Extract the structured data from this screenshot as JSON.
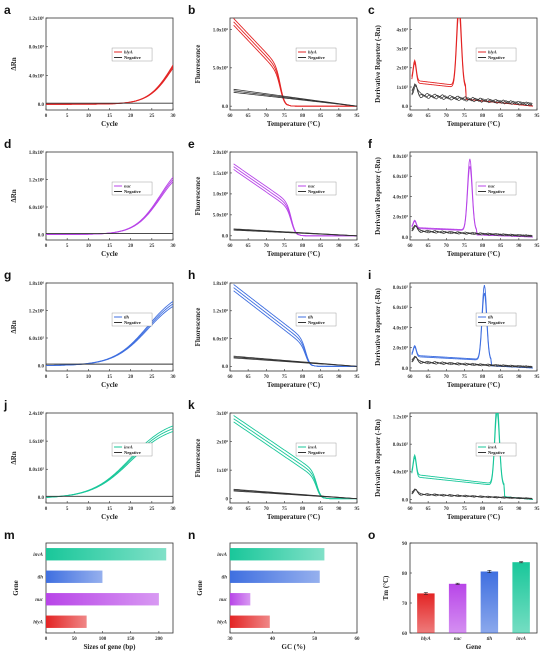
{
  "figure": {
    "colors": {
      "hlyA": "#e32424",
      "nuc": "#b845e8",
      "tlh": "#3f6fe0",
      "invA": "#19c79a",
      "negative": "#333333"
    },
    "panels": [
      {
        "id": "a",
        "label": "a",
        "kind": "amp",
        "color": "#e32424",
        "gene": "hlyA",
        "xlabel": "Cycle",
        "ylabel": "ΔRn",
        "xlim": [
          0,
          30
        ],
        "ylim": [
          -0.8,
          12
        ],
        "ymax": 12,
        "expo": "5",
        "yticks": [
          0,
          4,
          8,
          12
        ],
        "yticklabels": [
          "0.0",
          "4.0x10⁵",
          "8.0x10⁵",
          "1.2x10⁶"
        ],
        "xticks": [
          0,
          5,
          10,
          15,
          20,
          25,
          30
        ],
        "threshold_cycle": 17,
        "plateau": 10.5,
        "k": 0.35,
        "half": 30,
        "neg": 0.15,
        "legend": [
          "hlyA",
          "Negative"
        ]
      },
      {
        "id": "b",
        "label": "b",
        "kind": "melt",
        "color": "#e32424",
        "gene": "hlyA",
        "xlabel": "Temperature (°C)",
        "ylabel": "Fluorescence",
        "xlim": [
          60,
          95
        ],
        "ylim": [
          -0.05,
          1.15
        ],
        "yticks": [
          0,
          0.5,
          1.0
        ],
        "yticklabels": [
          "0.0",
          "5.0x10⁵",
          "1.0x10⁶"
        ],
        "xticks": [
          60,
          65,
          70,
          75,
          80,
          85,
          90,
          95
        ],
        "tm": 74,
        "start": 1.1,
        "shoulder": 0.5,
        "negstart": 0.2,
        "legend": [
          "hlyA",
          "Negative"
        ]
      },
      {
        "id": "c",
        "label": "c",
        "kind": "deriv",
        "color": "#e32424",
        "gene": "hlyA",
        "xlabel": "Temperature (°C)",
        "ylabel": "Derivative Reporter (-Rn)",
        "xlim": [
          60,
          95
        ],
        "ylim": [
          -0.2,
          4.6
        ],
        "yticks": [
          0,
          1,
          2,
          3,
          4
        ],
        "yticklabels": [
          "0.0",
          "1x10⁵",
          "2x10⁵",
          "3x10⁵",
          "4x10⁵"
        ],
        "xticks": [
          60,
          65,
          70,
          75,
          80,
          85,
          90,
          95
        ],
        "tm": 73.5,
        "peak": 4.2,
        "base": 1.3,
        "negbase": 0.6,
        "legend": [
          "hlyA",
          "Negative"
        ]
      },
      {
        "id": "d",
        "label": "d",
        "kind": "amp",
        "color": "#b845e8",
        "gene": "nuc",
        "xlabel": "Cycle",
        "ylabel": "ΔRn",
        "xlim": [
          0,
          30
        ],
        "ylim": [
          -1.2,
          18
        ],
        "yticks": [
          0,
          6,
          12,
          18
        ],
        "yticklabels": [
          "0.0",
          "6.0x10⁵",
          "1.2x10⁶",
          "1.8x10⁶"
        ],
        "xticks": [
          0,
          5,
          10,
          15,
          20,
          25,
          30
        ],
        "threshold_cycle": 17,
        "plateau": 16.5,
        "k": 0.33,
        "half": 27,
        "neg": 0.2,
        "legend": [
          "nuc",
          "Negative"
        ]
      },
      {
        "id": "e",
        "label": "e",
        "kind": "melt",
        "color": "#b845e8",
        "gene": "nuc",
        "xlabel": "Temperature (°C)",
        "ylabel": "Fluorescence",
        "xlim": [
          60,
          95
        ],
        "ylim": [
          -0.1,
          2.0
        ],
        "yticks": [
          0,
          0.5,
          1.0,
          1.5,
          2.0
        ],
        "yticklabels": [
          "0.0",
          "5.0x10⁵",
          "1.0x10⁶",
          "1.5x10⁶",
          "2.0x10⁶"
        ],
        "xticks": [
          60,
          65,
          70,
          75,
          80,
          85,
          90,
          95
        ],
        "tm": 77,
        "start": 1.65,
        "shoulder": 0.75,
        "negstart": 0.15,
        "legend": [
          "nuc",
          "Negative"
        ]
      },
      {
        "id": "f",
        "label": "f",
        "kind": "deriv",
        "color": "#b845e8",
        "gene": "nuc",
        "xlabel": "Temperature (°C)",
        "ylabel": "Derivative Reporter (-Rn)",
        "xlim": [
          60,
          95
        ],
        "ylim": [
          -0.3,
          8.4
        ],
        "yticks": [
          0,
          2,
          4,
          6,
          8
        ],
        "yticklabels": [
          "0.0",
          "2.0x10⁵",
          "4.0x10⁵",
          "6.0x10⁵",
          "8.0x10⁵"
        ],
        "xticks": [
          60,
          65,
          70,
          75,
          80,
          85,
          90,
          95
        ],
        "tm": 76.5,
        "peak": 6.7,
        "base": 0.9,
        "negbase": 0.6,
        "legend": [
          "nuc",
          "Negative"
        ]
      },
      {
        "id": "g",
        "label": "g",
        "kind": "amp",
        "color": "#3f6fe0",
        "gene": "tlh",
        "xlabel": "Cycle",
        "ylabel": "ΔRn",
        "xlim": [
          0,
          30
        ],
        "ylim": [
          -1.2,
          18
        ],
        "yticks": [
          0,
          6,
          12,
          18
        ],
        "yticklabels": [
          "0.0",
          "6.0x10⁵",
          "1.2x10⁶",
          "1.8x10⁶"
        ],
        "xticks": [
          0,
          5,
          10,
          15,
          20,
          25,
          30
        ],
        "threshold_cycle": 14,
        "plateau": 16.5,
        "k": 0.25,
        "half": 24,
        "neg": 0.3,
        "legend": [
          "tlh",
          "Negative"
        ]
      },
      {
        "id": "h",
        "label": "h",
        "kind": "melt",
        "color": "#3f6fe0",
        "gene": "tlh",
        "xlabel": "Temperature (°C)",
        "ylabel": "Fluorescence",
        "xlim": [
          60,
          95
        ],
        "ylim": [
          -0.1,
          1.8
        ],
        "yticks": [
          0,
          0.6,
          1.2,
          1.8
        ],
        "yticklabels": [
          "0.0",
          "6.0x10⁵",
          "1.2x10⁶",
          "1.8x10⁶"
        ],
        "xticks": [
          60,
          65,
          70,
          75,
          80,
          85,
          90,
          95
        ],
        "tm": 81,
        "start": 1.7,
        "shoulder": 0.55,
        "negstart": 0.2,
        "legend": [
          "tlh",
          "Negative"
        ]
      },
      {
        "id": "i",
        "label": "i",
        "kind": "deriv",
        "color": "#3f6fe0",
        "gene": "tlh",
        "xlabel": "Temperature (°C)",
        "ylabel": "Derivative Reporter (-Rn)",
        "xlim": [
          60,
          95
        ],
        "ylim": [
          -0.3,
          8.4
        ],
        "yticks": [
          0,
          2,
          4,
          6,
          8
        ],
        "yticklabels": [
          "0.0",
          "2.0x10⁵",
          "4.0x10⁵",
          "6.0x10⁵",
          "8.0x10⁵"
        ],
        "xticks": [
          60,
          65,
          70,
          75,
          80,
          85,
          90,
          95
        ],
        "tm": 80.5,
        "peak": 7.0,
        "base": 1.2,
        "negbase": 0.6,
        "legend": [
          "tlh",
          "Negative"
        ]
      },
      {
        "id": "j",
        "label": "j",
        "kind": "amp",
        "color": "#19c79a",
        "gene": "invA",
        "xlabel": "Cycle",
        "ylabel": "ΔRn",
        "xlim": [
          0,
          30
        ],
        "ylim": [
          -1.6,
          24
        ],
        "yticks": [
          0,
          8,
          16,
          24
        ],
        "yticklabels": [
          "0.0",
          "8.0x10⁵",
          "1.6x10⁶",
          "2.4x10⁶"
        ],
        "xticks": [
          0,
          5,
          10,
          15,
          20,
          25,
          30
        ],
        "threshold_cycle": 11,
        "plateau": 22,
        "k": 0.22,
        "half": 20,
        "neg": 0.3,
        "legend": [
          "invA",
          "Negative"
        ]
      },
      {
        "id": "k",
        "label": "k",
        "kind": "melt",
        "color": "#19c79a",
        "gene": "invA",
        "xlabel": "Temperature (°C)",
        "ylabel": "Fluorescence",
        "xlim": [
          60,
          95
        ],
        "ylim": [
          -0.15,
          3.0
        ],
        "yticks": [
          0,
          1,
          2,
          3
        ],
        "yticklabels": [
          "0",
          "1x10⁶",
          "2x10⁶",
          "3x10⁶"
        ],
        "xticks": [
          60,
          65,
          70,
          75,
          80,
          85,
          90,
          95
        ],
        "tm": 84,
        "start": 2.8,
        "shoulder": 0.9,
        "negstart": 0.3,
        "legend": [
          "invA",
          "Negative"
        ]
      },
      {
        "id": "l",
        "label": "l",
        "kind": "deriv",
        "color": "#19c79a",
        "gene": "invA",
        "xlabel": "Temperature (°C)",
        "ylabel": "Derivative Reporter (-Rn)",
        "xlim": [
          60,
          95
        ],
        "ylim": [
          -0.5,
          12.5
        ],
        "yticks": [
          0,
          4,
          8,
          12
        ],
        "yticklabels": [
          "0.0",
          "4.0x10⁵",
          "8.0x10⁵",
          "1.2x10⁶"
        ],
        "xticks": [
          60,
          65,
          70,
          75,
          80,
          85,
          90,
          95
        ],
        "tm": 84,
        "peak": 11.2,
        "base": 3.5,
        "negbase": 0.8,
        "legend": [
          "invA",
          "Negative"
        ]
      }
    ],
    "bars": [
      {
        "id": "m",
        "label": "m",
        "xlabel": "Sizes of gene (bp)",
        "ylabel": "Gene",
        "xlim": [
          0,
          225
        ],
        "xticks": [
          0,
          50,
          100,
          150,
          200
        ],
        "categories": [
          "hlyA",
          "nuc",
          "tlh",
          "invA"
        ],
        "values": [
          72,
          200,
          100,
          213
        ]
      },
      {
        "id": "n",
        "label": "n",
        "xlabel": "GC (%)",
        "ylabel": "Gene",
        "xlim": [
          30,
          60
        ],
        "xticks": [
          30,
          40,
          50,
          60
        ],
        "categories": [
          "hlyA",
          "nuc",
          "tlh",
          "invA"
        ],
        "values": [
          39.4,
          34.8,
          51.2,
          52.3
        ]
      }
    ],
    "tm": {
      "id": "o",
      "label": "o",
      "xlabel": "Gene",
      "ylabel": "Tm (°C)",
      "ylim": [
        60,
        90
      ],
      "yticks": [
        60,
        70,
        80,
        90
      ],
      "categories": [
        "hlyA",
        "nuc",
        "tlh",
        "invA"
      ],
      "values": [
        73.2,
        76.4,
        80.5,
        83.6
      ],
      "errors": [
        0.3,
        0.2,
        0.4,
        0.2
      ]
    }
  },
  "chart_data": [
    {
      "type": "line",
      "panel": "a",
      "xlabel": "Cycle",
      "ylabel": "ΔRn",
      "series": [
        {
          "name": "hlyA"
        },
        {
          "name": "Negative"
        }
      ]
    },
    {
      "type": "line",
      "panel": "b",
      "xlabel": "Temperature (°C)",
      "ylabel": "Fluorescence",
      "series": [
        {
          "name": "hlyA"
        },
        {
          "name": "Negative"
        }
      ]
    },
    {
      "type": "line",
      "panel": "c",
      "xlabel": "Temperature (°C)",
      "ylabel": "Derivative Reporter (-Rn)",
      "series": [
        {
          "name": "hlyA"
        },
        {
          "name": "Negative"
        }
      ]
    },
    {
      "type": "line",
      "panel": "d",
      "xlabel": "Cycle",
      "ylabel": "ΔRn",
      "series": [
        {
          "name": "nuc"
        },
        {
          "name": "Negative"
        }
      ]
    },
    {
      "type": "line",
      "panel": "e",
      "xlabel": "Temperature (°C)",
      "ylabel": "Fluorescence",
      "series": [
        {
          "name": "nuc"
        },
        {
          "name": "Negative"
        }
      ]
    },
    {
      "type": "line",
      "panel": "f",
      "xlabel": "Temperature (°C)",
      "ylabel": "Derivative Reporter (-Rn)",
      "series": [
        {
          "name": "nuc"
        },
        {
          "name": "Negative"
        }
      ]
    },
    {
      "type": "line",
      "panel": "g",
      "xlabel": "Cycle",
      "ylabel": "ΔRn",
      "series": [
        {
          "name": "tlh"
        },
        {
          "name": "Negative"
        }
      ]
    },
    {
      "type": "line",
      "panel": "h",
      "xlabel": "Temperature (°C)",
      "ylabel": "Fluorescence",
      "series": [
        {
          "name": "tlh"
        },
        {
          "name": "Negative"
        }
      ]
    },
    {
      "type": "line",
      "panel": "i",
      "xlabel": "Temperature (°C)",
      "ylabel": "Derivative Reporter (-Rn)",
      "series": [
        {
          "name": "tlh"
        },
        {
          "name": "Negative"
        }
      ]
    },
    {
      "type": "line",
      "panel": "j",
      "xlabel": "Cycle",
      "ylabel": "ΔRn",
      "series": [
        {
          "name": "invA"
        },
        {
          "name": "Negative"
        }
      ]
    },
    {
      "type": "line",
      "panel": "k",
      "xlabel": "Temperature (°C)",
      "ylabel": "Fluorescence",
      "series": [
        {
          "name": "invA"
        },
        {
          "name": "Negative"
        }
      ]
    },
    {
      "type": "line",
      "panel": "l",
      "xlabel": "Temperature (°C)",
      "ylabel": "Derivative Reporter (-Rn)",
      "series": [
        {
          "name": "invA"
        },
        {
          "name": "Negative"
        }
      ]
    },
    {
      "type": "bar",
      "panel": "m",
      "categories": [
        "hlyA",
        "nuc",
        "tlh",
        "invA"
      ],
      "values": [
        72,
        200,
        100,
        213
      ],
      "xlabel": "Sizes of gene (bp)",
      "ylabel": "Gene"
    },
    {
      "type": "bar",
      "panel": "n",
      "categories": [
        "hlyA",
        "nuc",
        "tlh",
        "invA"
      ],
      "values": [
        39.4,
        34.8,
        51.2,
        52.3
      ],
      "xlabel": "GC (%)",
      "ylabel": "Gene"
    },
    {
      "type": "bar",
      "panel": "o",
      "categories": [
        "hlyA",
        "nuc",
        "tlh",
        "invA"
      ],
      "values": [
        73.2,
        76.4,
        80.5,
        83.6
      ],
      "xlabel": "Gene",
      "ylabel": "Tm (°C)",
      "ylim": [
        60,
        90
      ]
    }
  ]
}
